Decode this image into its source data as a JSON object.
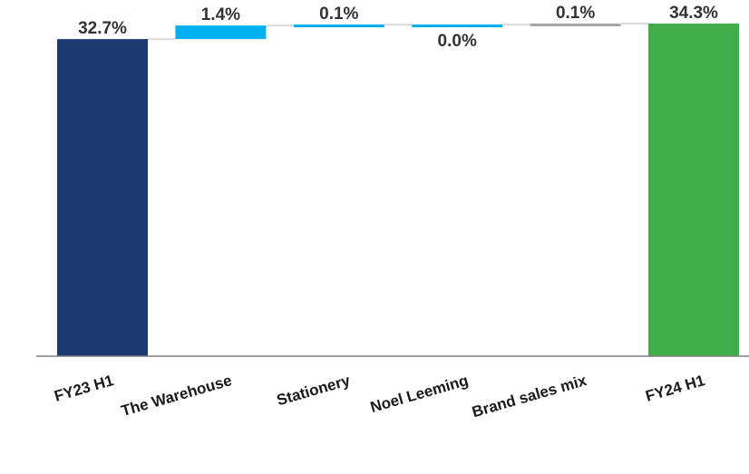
{
  "chart_data": {
    "type": "bar",
    "subtype": "waterfall",
    "title": "",
    "xlabel": "",
    "ylabel": "",
    "categories": [
      "FY23 H1",
      "The Warehouse",
      "Stationery",
      "Noel Leeming",
      "Brand sales mix",
      "FY24 H1"
    ],
    "values": [
      32.7,
      1.4,
      0.1,
      0.0,
      0.1,
      34.3
    ],
    "labels": [
      "32.7%",
      "1.4%",
      "0.1%",
      "0.0%",
      "0.1%",
      "34.3%"
    ],
    "bar_kinds": [
      "total",
      "delta",
      "delta",
      "delta",
      "delta",
      "total"
    ],
    "colors": [
      "#1b3a6e",
      "#00b0f0",
      "#00b0f0",
      "#00b0f0",
      "#a6a6a6",
      "#3fae49"
    ],
    "connector_color": "#d0d0d0",
    "axis_color": "#7f7f7f",
    "grid": false,
    "legend": "none"
  }
}
